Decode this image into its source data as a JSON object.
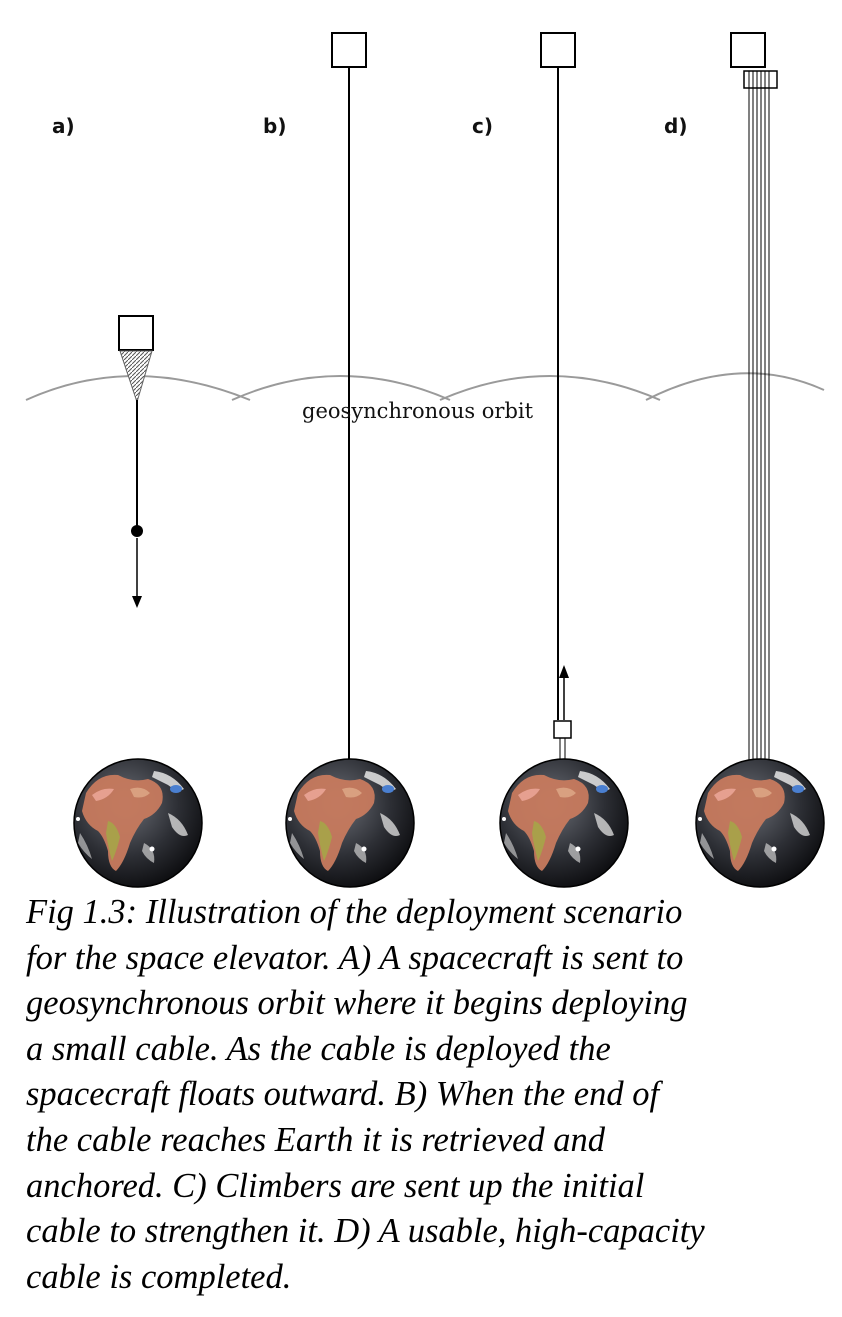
{
  "figure": {
    "panel_labels": [
      "a)",
      "b)",
      "c)",
      "d)"
    ],
    "orbit_label": "geosynchronous orbit",
    "colors": {
      "orbit": "#9a9a9a",
      "cable": "#000000",
      "ocean": "#2e3036",
      "land": "#c77a5e",
      "cloud": "#e6e6e6"
    }
  },
  "caption": {
    "lines": [
      "Fig 1.3: Illustration of the deployment scenario",
      "for the space elevator.  A) A spacecraft is sent to",
      "geosynchronous orbit where it begins deploying",
      "a small cable.  As the cable is deployed the",
      "spacecraft floats outward.  B) When the end of",
      "the cable reaches Earth it is retrieved and",
      "anchored.  C) Climbers are sent up the initial",
      "cable to strengthen it. D) A usable, high-capacity",
      "cable is completed."
    ]
  }
}
